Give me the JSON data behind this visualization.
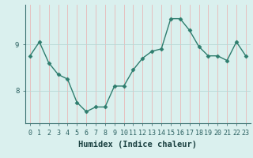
{
  "xlabel": "Humidex (Indice chaleur)",
  "x": [
    0,
    1,
    2,
    3,
    4,
    5,
    6,
    7,
    8,
    9,
    10,
    11,
    12,
    13,
    14,
    15,
    16,
    17,
    18,
    19,
    20,
    21,
    22,
    23
  ],
  "y": [
    8.75,
    9.05,
    8.6,
    8.35,
    8.25,
    7.75,
    7.55,
    7.65,
    7.65,
    8.1,
    8.1,
    8.45,
    8.7,
    8.85,
    8.9,
    9.55,
    9.55,
    9.3,
    8.95,
    8.75,
    8.75,
    8.65,
    9.05,
    8.75
  ],
  "line_color": "#2e7d6e",
  "marker": "D",
  "marker_size": 2.5,
  "background_color": "#daf0ee",
  "vgrid_color": "#e8b8b8",
  "hgrid_color": "#b8d8d5",
  "ylim_min": 7.3,
  "ylim_max": 9.85,
  "yticks": [
    8,
    9
  ],
  "xtick_labels": [
    "0",
    "1",
    "2",
    "3",
    "4",
    "5",
    "6",
    "7",
    "8",
    "9",
    "10",
    "11",
    "12",
    "13",
    "14",
    "15",
    "16",
    "17",
    "18",
    "19",
    "20",
    "21",
    "22",
    "23"
  ],
  "label_fontsize": 7.5,
  "tick_fontsize": 6.0
}
